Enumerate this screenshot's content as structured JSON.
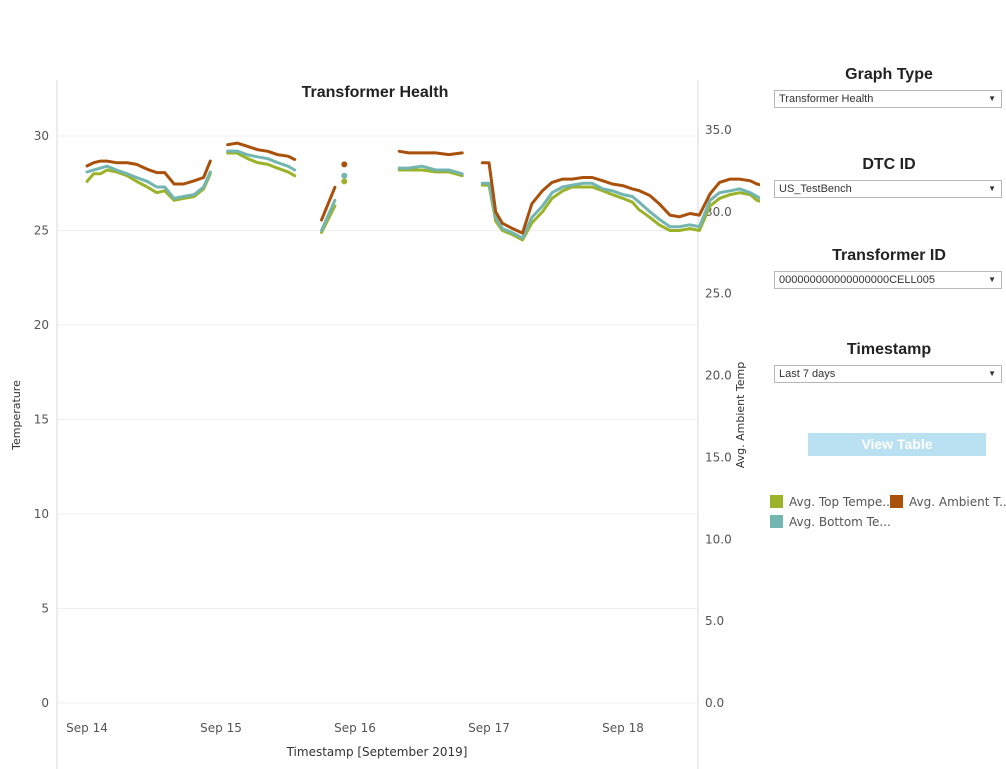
{
  "chart_data": {
    "type": "line",
    "title": "Transformer Health",
    "xlabel": "Timestamp [September 2019]",
    "ylabel": "Temperature",
    "y2label": "Avg. Ambient Temp",
    "xlim": [
      0,
      4.82
    ],
    "ylim": [
      0,
      30
    ],
    "y2lim": [
      0,
      35
    ],
    "x_ticks": [
      0,
      1,
      2,
      3,
      4
    ],
    "x_tick_labels": [
      "Sep 14",
      "Sep 15",
      "Sep 16",
      "Sep 17",
      "Sep 18"
    ],
    "y_ticks": [
      0,
      5,
      10,
      15,
      20,
      25,
      30
    ],
    "y_tick_labels": [
      "0",
      "5",
      "10",
      "15",
      "20",
      "25",
      "30"
    ],
    "y2_ticks": [
      0,
      5,
      10,
      15,
      20,
      25,
      30,
      35
    ],
    "y2_tick_labels": [
      "0.0",
      "5.0",
      "10.0",
      "15.0",
      "20.0",
      "25.0",
      "30.0",
      "35.0"
    ],
    "grid": true,
    "legend_position": "right",
    "series": [
      {
        "name": "Avg. Top Tempe...",
        "color": "#9ab328",
        "axis": "left",
        "segments": [
          [
            [
              0.0,
              27.6
            ],
            [
              0.05,
              28.0
            ],
            [
              0.1,
              28.0
            ],
            [
              0.15,
              28.2
            ],
            [
              0.22,
              28.1
            ],
            [
              0.3,
              27.9
            ],
            [
              0.37,
              27.6
            ],
            [
              0.45,
              27.3
            ],
            [
              0.52,
              27.0
            ],
            [
              0.58,
              27.1
            ],
            [
              0.65,
              26.6
            ],
            [
              0.72,
              26.7
            ],
            [
              0.8,
              26.8
            ],
            [
              0.87,
              27.2
            ],
            [
              0.92,
              28.0
            ]
          ],
          [
            [
              1.05,
              29.1
            ],
            [
              1.12,
              29.1
            ],
            [
              1.2,
              28.8
            ],
            [
              1.27,
              28.6
            ],
            [
              1.35,
              28.5
            ],
            [
              1.42,
              28.3
            ],
            [
              1.5,
              28.1
            ],
            [
              1.55,
              27.9
            ]
          ],
          [
            [
              1.75,
              24.9
            ],
            [
              1.85,
              26.3
            ]
          ],
          [
            [
              2.33,
              28.2
            ],
            [
              2.4,
              28.2
            ],
            [
              2.5,
              28.2
            ],
            [
              2.6,
              28.1
            ],
            [
              2.7,
              28.1
            ],
            [
              2.8,
              27.9
            ]
          ],
          [
            [
              2.95,
              27.4
            ],
            [
              3.0,
              27.4
            ],
            [
              3.05,
              25.5
            ],
            [
              3.1,
              25.0
            ],
            [
              3.17,
              24.8
            ],
            [
              3.25,
              24.5
            ],
            [
              3.32,
              25.4
            ],
            [
              3.4,
              26.0
            ],
            [
              3.47,
              26.7
            ],
            [
              3.55,
              27.1
            ],
            [
              3.62,
              27.3
            ],
            [
              3.7,
              27.3
            ],
            [
              3.77,
              27.3
            ],
            [
              3.85,
              27.1
            ],
            [
              3.92,
              26.9
            ],
            [
              4.0,
              26.7
            ],
            [
              4.07,
              26.5
            ],
            [
              4.12,
              26.1
            ],
            [
              4.2,
              25.7
            ],
            [
              4.27,
              25.3
            ],
            [
              4.35,
              25.0
            ],
            [
              4.42,
              25.0
            ],
            [
              4.5,
              25.1
            ],
            [
              4.57,
              25.0
            ],
            [
              4.65,
              26.3
            ],
            [
              4.72,
              26.7
            ],
            [
              4.8,
              26.9
            ],
            [
              4.87,
              27.0
            ],
            [
              4.95,
              26.9
            ],
            [
              5.0,
              26.6
            ],
            [
              5.05,
              26.5
            ],
            [
              5.1,
              26.0
            ]
          ]
        ]
      },
      {
        "name": "Avg. Bottom Te...",
        "color": "#72b5b1",
        "axis": "left",
        "segments": [
          [
            [
              0.0,
              28.1
            ],
            [
              0.05,
              28.2
            ],
            [
              0.1,
              28.3
            ],
            [
              0.15,
              28.4
            ],
            [
              0.22,
              28.2
            ],
            [
              0.3,
              28.0
            ],
            [
              0.37,
              27.8
            ],
            [
              0.45,
              27.6
            ],
            [
              0.52,
              27.3
            ],
            [
              0.58,
              27.3
            ],
            [
              0.65,
              26.7
            ],
            [
              0.72,
              26.8
            ],
            [
              0.8,
              26.9
            ],
            [
              0.87,
              27.3
            ],
            [
              0.92,
              28.1
            ]
          ],
          [
            [
              1.05,
              29.2
            ],
            [
              1.12,
              29.2
            ],
            [
              1.2,
              29.0
            ],
            [
              1.27,
              28.9
            ],
            [
              1.35,
              28.8
            ],
            [
              1.42,
              28.6
            ],
            [
              1.5,
              28.4
            ],
            [
              1.55,
              28.2
            ]
          ],
          [
            [
              1.75,
              25.0
            ],
            [
              1.85,
              26.6
            ]
          ],
          [
            [
              2.33,
              28.3
            ],
            [
              2.4,
              28.3
            ],
            [
              2.5,
              28.4
            ],
            [
              2.6,
              28.2
            ],
            [
              2.7,
              28.2
            ],
            [
              2.8,
              28.0
            ]
          ],
          [
            [
              2.95,
              27.5
            ],
            [
              3.0,
              27.5
            ],
            [
              3.05,
              25.7
            ],
            [
              3.1,
              25.1
            ],
            [
              3.17,
              24.9
            ],
            [
              3.25,
              24.6
            ],
            [
              3.32,
              25.7
            ],
            [
              3.4,
              26.3
            ],
            [
              3.47,
              27.0
            ],
            [
              3.55,
              27.3
            ],
            [
              3.62,
              27.4
            ],
            [
              3.7,
              27.5
            ],
            [
              3.77,
              27.5
            ],
            [
              3.85,
              27.2
            ],
            [
              3.92,
              27.1
            ],
            [
              4.0,
              26.9
            ],
            [
              4.07,
              26.8
            ],
            [
              4.12,
              26.5
            ],
            [
              4.2,
              26.0
            ],
            [
              4.27,
              25.6
            ],
            [
              4.35,
              25.2
            ],
            [
              4.42,
              25.2
            ],
            [
              4.5,
              25.3
            ],
            [
              4.57,
              25.2
            ],
            [
              4.65,
              26.6
            ],
            [
              4.72,
              27.0
            ],
            [
              4.8,
              27.1
            ],
            [
              4.87,
              27.2
            ],
            [
              4.95,
              27.0
            ],
            [
              5.0,
              26.8
            ],
            [
              5.05,
              26.6
            ],
            [
              5.1,
              26.3
            ]
          ]
        ]
      },
      {
        "name": "Avg. Ambient T...",
        "color": "#a9500b",
        "axis": "right",
        "segments": [
          [
            [
              0.0,
              32.8
            ],
            [
              0.05,
              33.0
            ],
            [
              0.1,
              33.1
            ],
            [
              0.15,
              33.1
            ],
            [
              0.22,
              33.0
            ],
            [
              0.3,
              33.0
            ],
            [
              0.37,
              32.9
            ],
            [
              0.45,
              32.6
            ],
            [
              0.52,
              32.4
            ],
            [
              0.58,
              32.4
            ],
            [
              0.65,
              31.7
            ],
            [
              0.72,
              31.7
            ],
            [
              0.8,
              31.9
            ],
            [
              0.87,
              32.1
            ],
            [
              0.92,
              33.1
            ]
          ],
          [
            [
              1.05,
              34.1
            ],
            [
              1.12,
              34.2
            ],
            [
              1.2,
              34.0
            ],
            [
              1.27,
              33.8
            ],
            [
              1.35,
              33.7
            ],
            [
              1.42,
              33.5
            ],
            [
              1.5,
              33.4
            ],
            [
              1.55,
              33.2
            ]
          ],
          [
            [
              1.75,
              29.5
            ],
            [
              1.85,
              31.5
            ]
          ],
          [
            [
              2.33,
              33.7
            ],
            [
              2.4,
              33.6
            ],
            [
              2.5,
              33.6
            ],
            [
              2.6,
              33.6
            ],
            [
              2.7,
              33.5
            ],
            [
              2.8,
              33.6
            ]
          ],
          [
            [
              2.95,
              33.0
            ],
            [
              3.0,
              33.0
            ],
            [
              3.05,
              30.0
            ],
            [
              3.1,
              29.3
            ],
            [
              3.17,
              29.0
            ],
            [
              3.25,
              28.7
            ],
            [
              3.32,
              30.5
            ],
            [
              3.4,
              31.3
            ],
            [
              3.47,
              31.8
            ],
            [
              3.55,
              32.0
            ],
            [
              3.62,
              32.0
            ],
            [
              3.7,
              32.1
            ],
            [
              3.77,
              32.1
            ],
            [
              3.85,
              31.9
            ],
            [
              3.92,
              31.7
            ],
            [
              4.0,
              31.6
            ],
            [
              4.07,
              31.4
            ],
            [
              4.12,
              31.3
            ],
            [
              4.2,
              31.0
            ],
            [
              4.27,
              30.5
            ],
            [
              4.35,
              29.8
            ],
            [
              4.42,
              29.7
            ],
            [
              4.5,
              29.9
            ],
            [
              4.57,
              29.8
            ],
            [
              4.65,
              31.1
            ],
            [
              4.72,
              31.8
            ],
            [
              4.8,
              32.0
            ],
            [
              4.87,
              32.0
            ],
            [
              4.95,
              31.9
            ],
            [
              5.0,
              31.7
            ],
            [
              5.05,
              31.6
            ],
            [
              5.1,
              31.3
            ]
          ]
        ]
      }
    ],
    "isolated_points": [
      {
        "series": "Avg. Ambient T...",
        "x": 1.92,
        "y": 32.9
      },
      {
        "series": "Avg. Bottom Te...",
        "x": 1.92,
        "y": 27.9
      },
      {
        "series": "Avg. Top Tempe...",
        "x": 1.92,
        "y": 27.6
      }
    ]
  },
  "controls": {
    "graph_type": {
      "label": "Graph Type",
      "value": "Transformer Health"
    },
    "dtc_id": {
      "label": "DTC ID",
      "value": "US_TestBench"
    },
    "transformer_id": {
      "label": "Transformer ID",
      "value": "000000000000000000CELL005"
    },
    "timestamp": {
      "label": "Timestamp",
      "value": "Last 7 days"
    },
    "view_table_label": "View Table"
  },
  "legend": [
    {
      "label": "Avg. Top Tempe...",
      "color": "#9ab328"
    },
    {
      "label": "Avg. Ambient T...",
      "color": "#a9500b"
    },
    {
      "label": "Avg. Bottom Te...",
      "color": "#72b5b1"
    }
  ]
}
